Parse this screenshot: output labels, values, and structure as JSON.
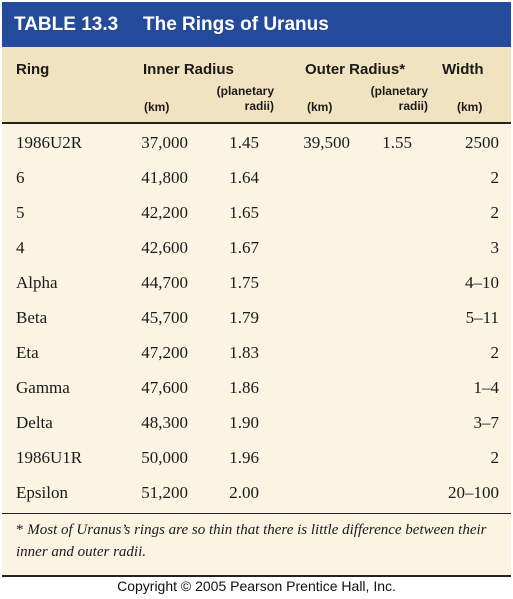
{
  "title": {
    "number": "TABLE 13.3",
    "name": "The Rings of Uranus"
  },
  "columns": {
    "ring": "Ring",
    "inner_radius": "Inner Radius",
    "outer_radius": "Outer Radius",
    "outer_marker": "*",
    "width": "Width",
    "inner_km": "(km)",
    "inner_pr_1": "(planetary",
    "inner_pr_2": "radii)",
    "outer_km": "(km)",
    "outer_pr_1": "(planetary",
    "outer_pr_2": "radii)",
    "width_km": "(km)"
  },
  "rows": [
    {
      "ring": "1986U2R",
      "inner_km": "37,000",
      "inner_pr": "1.45",
      "outer_km": "39,500",
      "outer_pr": "1.55",
      "width": "2500"
    },
    {
      "ring": "6",
      "inner_km": "41,800",
      "inner_pr": "1.64",
      "outer_km": "",
      "outer_pr": "",
      "width": "2"
    },
    {
      "ring": "5",
      "inner_km": "42,200",
      "inner_pr": "1.65",
      "outer_km": "",
      "outer_pr": "",
      "width": "2"
    },
    {
      "ring": "4",
      "inner_km": "42,600",
      "inner_pr": "1.67",
      "outer_km": "",
      "outer_pr": "",
      "width": "3"
    },
    {
      "ring": "Alpha",
      "inner_km": "44,700",
      "inner_pr": "1.75",
      "outer_km": "",
      "outer_pr": "",
      "width": "4–10"
    },
    {
      "ring": "Beta",
      "inner_km": "45,700",
      "inner_pr": "1.79",
      "outer_km": "",
      "outer_pr": "",
      "width": "5–11"
    },
    {
      "ring": "Eta",
      "inner_km": "47,200",
      "inner_pr": "1.83",
      "outer_km": "",
      "outer_pr": "",
      "width": "2"
    },
    {
      "ring": "Gamma",
      "inner_km": "47,600",
      "inner_pr": "1.86",
      "outer_km": "",
      "outer_pr": "",
      "width": "1–4"
    },
    {
      "ring": "Delta",
      "inner_km": "48,300",
      "inner_pr": "1.90",
      "outer_km": "",
      "outer_pr": "",
      "width": "3–7"
    },
    {
      "ring": "1986U1R",
      "inner_km": "50,000",
      "inner_pr": "1.96",
      "outer_km": "",
      "outer_pr": "",
      "width": "2"
    },
    {
      "ring": "Epsilon",
      "inner_km": "51,200",
      "inner_pr": "2.00",
      "outer_km": "",
      "outer_pr": "",
      "width": "20–100"
    }
  ],
  "footnote": {
    "marker": "*",
    "text": " Most of Uranus’s rings are so thin that there is little difference between their inner and outer radii."
  },
  "copyright": "Copyright © 2005 Pearson Prentice Hall, Inc.",
  "colors": {
    "title_bar": "#244a9c",
    "header_band": "#f1e3bf",
    "body_background": "#fbf4e3"
  }
}
